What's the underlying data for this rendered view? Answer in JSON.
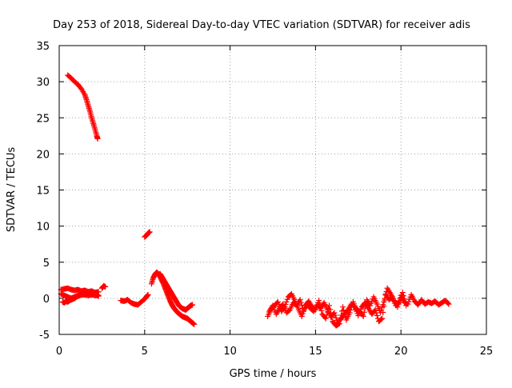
{
  "chart_data": {
    "type": "scatter",
    "title": "Day 253 of 2018, Sidereal Day-to-day VTEC variation (SDTVAR) for receiver adis",
    "xlabel": "GPS time / hours",
    "ylabel": "SDTVAR / TECUs",
    "xlim": [
      0,
      25
    ],
    "ylim": [
      -5,
      35
    ],
    "xticks": [
      0,
      5,
      10,
      15,
      20,
      25
    ],
    "yticks": [
      -5,
      0,
      5,
      10,
      15,
      20,
      25,
      30,
      35
    ],
    "xtick_labels": [
      "0",
      "5",
      "10",
      "15",
      "20",
      "25"
    ],
    "ytick_labels": [
      "-5",
      "0",
      "5",
      "10",
      "15",
      "20",
      "25",
      "30",
      "35"
    ],
    "grid": true,
    "marker": "+",
    "color": "#ff0000",
    "series": [
      {
        "name": "SDTVAR",
        "segments": [
          {
            "x": [
              0.5,
              0.7,
              0.9,
              1.1,
              1.3,
              1.5,
              1.6,
              1.7,
              1.8,
              1.9,
              2.0,
              2.1,
              2.2,
              2.25
            ],
            "y": [
              30.9,
              30.5,
              30.0,
              29.6,
              29.0,
              28.2,
              27.5,
              26.7,
              25.9,
              25.0,
              24.2,
              23.4,
              22.5,
              22.1
            ]
          },
          {
            "x": [
              0.1,
              0.3,
              0.5,
              0.7,
              0.9,
              1.1,
              1.3,
              1.5,
              1.7,
              1.9,
              2.1,
              2.3
            ],
            "y": [
              1.2,
              1.3,
              1.4,
              1.2,
              1.1,
              1.2,
              1.0,
              1.1,
              0.9,
              1.0,
              0.8,
              0.9
            ]
          },
          {
            "x": [
              0.1,
              0.3,
              0.5,
              0.7,
              0.9,
              1.1,
              1.3,
              1.5,
              1.7,
              1.9,
              2.1,
              2.3
            ],
            "y": [
              0.6,
              0.4,
              0.2,
              0.0,
              0.2,
              0.4,
              0.5,
              0.5,
              0.4,
              0.5,
              0.4,
              0.4
            ]
          },
          {
            "x": [
              0.2,
              0.3,
              0.4,
              0.5,
              0.6,
              0.7,
              0.8,
              0.9,
              1.0,
              1.1,
              1.2,
              1.3,
              1.4,
              1.5,
              1.6,
              1.7,
              1.8,
              1.9,
              2.0,
              2.1,
              2.2,
              2.3
            ],
            "y": [
              -0.5,
              -0.6,
              -0.4,
              -0.5,
              -0.3,
              -0.2,
              -0.1,
              0.0,
              0.2,
              0.3,
              0.4,
              0.5,
              0.6,
              0.7,
              0.6,
              0.7,
              0.8,
              0.7,
              0.6,
              0.7,
              0.5,
              0.3
            ]
          },
          {
            "x": [
              2.5,
              2.6,
              2.7
            ],
            "y": [
              1.4,
              1.7,
              1.6
            ]
          },
          {
            "x": [
              3.6,
              3.8,
              4.0,
              4.2,
              4.4,
              4.6,
              4.8,
              5.0,
              5.1,
              5.2
            ],
            "y": [
              -0.3,
              -0.4,
              -0.2,
              -0.6,
              -0.8,
              -0.9,
              -0.5,
              -0.1,
              0.2,
              0.5
            ]
          },
          {
            "x": [
              5.0,
              5.1,
              5.2,
              5.3
            ],
            "y": [
              8.5,
              8.7,
              9.0,
              9.2
            ]
          },
          {
            "x": [
              5.4,
              5.5,
              5.6,
              5.7,
              5.8,
              5.9,
              6.0,
              6.1,
              6.2,
              6.3,
              6.4,
              6.5,
              6.6,
              6.7,
              6.8,
              6.9,
              7.0,
              7.1,
              7.2,
              7.3,
              7.4,
              7.5,
              7.6,
              7.7,
              7.8,
              7.9
            ],
            "y": [
              2.0,
              2.8,
              3.3,
              3.6,
              3.4,
              3.0,
              2.5,
              2.0,
              1.4,
              0.8,
              0.2,
              -0.4,
              -0.9,
              -1.3,
              -1.6,
              -1.9,
              -2.1,
              -2.3,
              -2.5,
              -2.6,
              -2.7,
              -2.8,
              -3.0,
              -3.2,
              -3.4,
              -3.6
            ]
          },
          {
            "x": [
              5.8,
              5.9,
              6.0,
              6.1,
              6.2,
              6.3,
              6.4,
              6.5,
              6.6,
              6.7,
              6.8,
              6.9,
              7.0,
              7.1,
              7.2,
              7.3,
              7.4,
              7.5,
              7.6,
              7.7,
              7.8
            ],
            "y": [
              3.2,
              3.4,
              3.0,
              2.6,
              2.2,
              1.8,
              1.4,
              1.0,
              0.6,
              0.2,
              -0.2,
              -0.6,
              -1.0,
              -1.2,
              -1.4,
              -1.5,
              -1.6,
              -1.4,
              -1.2,
              -1.0,
              -0.9
            ]
          },
          {
            "x": [
              12.2,
              12.4,
              12.6,
              12.8,
              13.0,
              13.2,
              13.4,
              13.6,
              13.8,
              14.0,
              14.2,
              14.4,
              14.6,
              14.8,
              15.0,
              15.2,
              15.4,
              15.6,
              15.8,
              16.0,
              16.2,
              16.4,
              16.6,
              16.8,
              17.0,
              17.2,
              17.4,
              17.6,
              17.8,
              18.0,
              18.2,
              18.4,
              18.6,
              18.8,
              19.0,
              19.2,
              19.4,
              19.6,
              19.8,
              20.0,
              20.2,
              20.4,
              20.6,
              20.8,
              21.0,
              21.2,
              21.4,
              21.6,
              21.8,
              22.0,
              22.2,
              22.4,
              22.6,
              22.8
            ],
            "y": [
              -2.5,
              -1.5,
              -1.0,
              -0.5,
              -1.8,
              -1.2,
              0.2,
              0.6,
              -0.4,
              -1.5,
              -2.5,
              -1.0,
              -0.4,
              -1.2,
              -1.6,
              -0.3,
              -2.2,
              -2.8,
              -1.0,
              -3.2,
              -3.8,
              -3.5,
              -1.2,
              -3.0,
              -2.0,
              -0.5,
              -1.6,
              -1.8,
              -2.5,
              -0.2,
              -1.0,
              0.2,
              -0.8,
              -2.0,
              -0.5,
              1.4,
              0.6,
              -0.3,
              -1.2,
              0.4,
              -0.6,
              -0.8,
              0.5,
              -0.4,
              -0.9,
              -0.2,
              -0.8,
              -0.5,
              -0.7,
              -0.4,
              -0.9,
              -0.6,
              -0.3,
              -0.8
            ]
          },
          {
            "x": [
              12.3,
              12.5,
              12.7,
              12.9,
              13.1,
              13.3,
              13.5,
              13.7,
              13.9,
              14.1,
              14.3,
              14.5,
              14.7,
              14.9,
              15.1,
              15.3,
              15.5,
              15.7,
              15.9,
              16.1,
              16.3,
              16.5,
              16.7,
              16.9,
              17.1,
              17.3,
              17.5,
              17.7,
              17.9,
              18.1,
              18.3,
              18.5,
              18.7,
              18.9,
              19.1,
              19.3,
              19.5,
              19.7,
              19.9,
              20.1,
              20.3
            ],
            "y": [
              -1.8,
              -1.0,
              -2.2,
              -1.4,
              -0.8,
              -2.0,
              -1.6,
              -0.6,
              -1.0,
              -0.2,
              -1.8,
              -0.8,
              -1.4,
              -1.8,
              -0.9,
              -1.4,
              -0.6,
              -1.6,
              -2.6,
              -2.0,
              -3.4,
              -2.8,
              -2.2,
              -1.6,
              -0.8,
              -1.2,
              -2.4,
              -1.2,
              -0.6,
              -1.4,
              -2.2,
              -1.6,
              -3.2,
              -2.8,
              0.6,
              -0.2,
              0.2,
              -1.0,
              -0.6,
              0.8,
              -1.0
            ]
          }
        ]
      }
    ]
  }
}
